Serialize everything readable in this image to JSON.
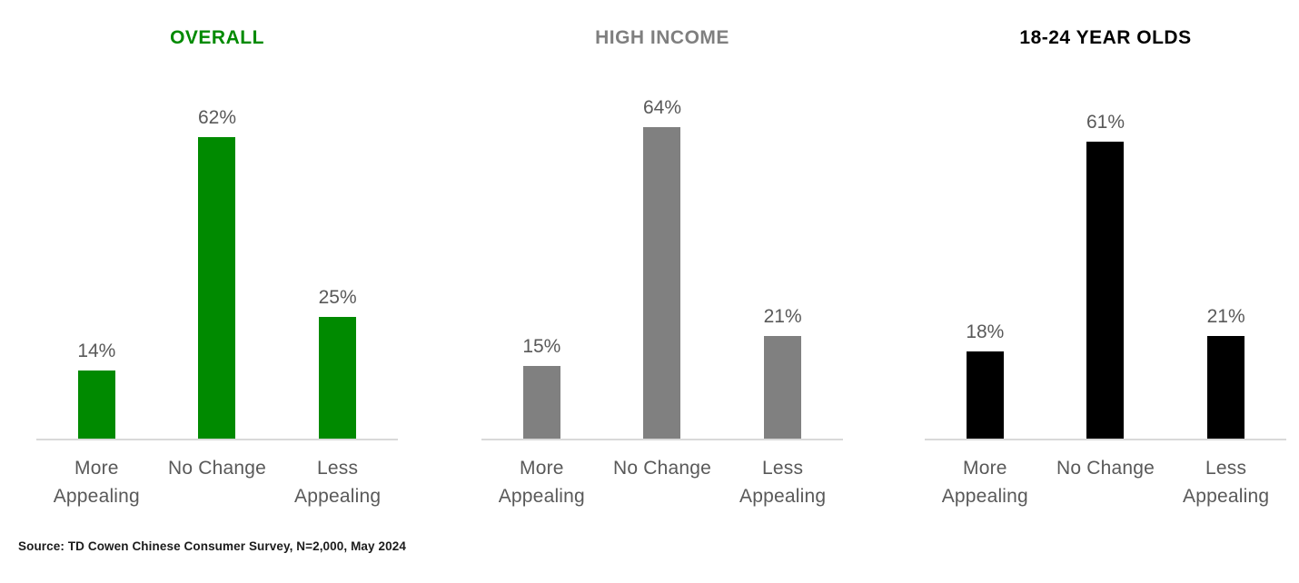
{
  "footer": {
    "source": "Source: TD Cowen Chinese Consumer Survey, N=2,000, May 2024"
  },
  "chart_data": [
    {
      "type": "bar",
      "title": "OVERALL",
      "title_color": "#008A00",
      "bar_color": "#008A00",
      "categories": [
        "More\nAppealing",
        "No Change",
        "Less\nAppealing"
      ],
      "values": [
        14,
        62,
        25
      ],
      "unit": "%",
      "ylim": [
        0,
        70
      ],
      "data_label_color": "#595959",
      "axis_line_color": "#d9d9d9",
      "grid": false,
      "legend": "none"
    },
    {
      "type": "bar",
      "title": "HIGH INCOME",
      "title_color": "#7F7F7F",
      "bar_color": "#808080",
      "categories": [
        "More\nAppealing",
        "No Change",
        "Less\nAppealing"
      ],
      "values": [
        15,
        64,
        21
      ],
      "unit": "%",
      "ylim": [
        0,
        70
      ],
      "data_label_color": "#595959",
      "axis_line_color": "#d9d9d9",
      "grid": false,
      "legend": "none"
    },
    {
      "type": "bar",
      "title": "18-24 YEAR OLDS",
      "title_color": "#000000",
      "bar_color": "#000000",
      "categories": [
        "More\nAppealing",
        "No Change",
        "Less\nAppealing"
      ],
      "values": [
        18,
        61,
        21
      ],
      "unit": "%",
      "ylim": [
        0,
        70
      ],
      "data_label_color": "#595959",
      "axis_line_color": "#d9d9d9",
      "grid": false,
      "legend": "none"
    }
  ]
}
